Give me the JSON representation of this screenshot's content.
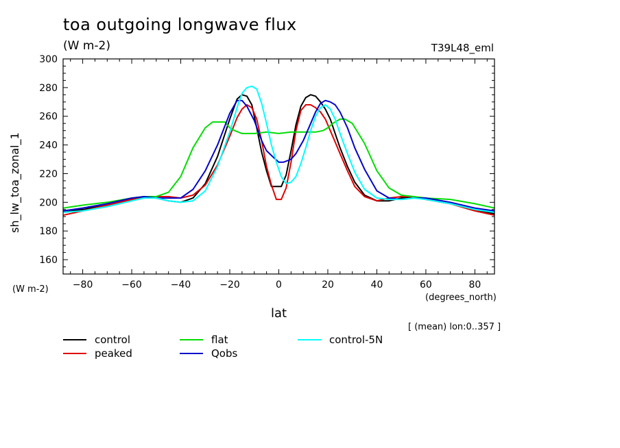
{
  "page": {
    "title": "toa outgoing longwave flux",
    "subtitle": "(W m-2)",
    "run_name": "T39L48_eml",
    "y_units": "(W m-2)",
    "x_units": "(degrees_north)",
    "averaging_note": "[ (mean) lon:0..357 ]"
  },
  "chart_data": {
    "type": "line",
    "title": "toa outgoing longwave flux",
    "xlabel": "lat",
    "ylabel": "sh_lw_toa_zonal_1",
    "xlim": [
      -88,
      88
    ],
    "ylim": [
      150,
      300
    ],
    "xticks": [
      -80,
      -60,
      -40,
      -20,
      0,
      20,
      40,
      60,
      80
    ],
    "yticks": [
      160,
      180,
      200,
      220,
      240,
      260,
      280,
      300
    ],
    "grid": false,
    "legend_position": "below",
    "series": [
      {
        "name": "control",
        "color": "#000000",
        "x": [
          -88,
          -80,
          -70,
          -60,
          -55,
          -50,
          -45,
          -40,
          -35,
          -30,
          -25,
          -20,
          -17,
          -15,
          -13,
          -11,
          -9,
          -7,
          -5,
          -3,
          -1,
          1,
          3,
          5,
          7,
          9,
          11,
          13,
          15,
          17,
          19,
          21,
          23,
          25,
          28,
          31,
          35,
          40,
          45,
          50,
          55,
          60,
          70,
          80,
          88
        ],
        "y": [
          193,
          195,
          198,
          202,
          204,
          203,
          201,
          200,
          203,
          213,
          232,
          258,
          272,
          275,
          274,
          268,
          252,
          235,
          222,
          211,
          211,
          211,
          219,
          236,
          254,
          267,
          273,
          275,
          274,
          270,
          265,
          258,
          248,
          238,
          225,
          214,
          205,
          201,
          201,
          203,
          204,
          202,
          199,
          195,
          192
        ]
      },
      {
        "name": "peaked",
        "color": "#e00000",
        "x": [
          -88,
          -80,
          -70,
          -60,
          -55,
          -50,
          -45,
          -40,
          -35,
          -30,
          -25,
          -20,
          -17,
          -15,
          -13,
          -11,
          -9,
          -7,
          -5,
          -3,
          -1,
          1,
          3,
          5,
          7,
          9,
          11,
          13,
          15,
          17,
          19,
          21,
          23,
          25,
          28,
          31,
          35,
          40,
          45,
          50,
          55,
          60,
          70,
          80,
          88
        ],
        "y": [
          191,
          194,
          198,
          202,
          204,
          204,
          204,
          203,
          205,
          212,
          226,
          246,
          259,
          265,
          268,
          266,
          258,
          243,
          225,
          212,
          202,
          202,
          210,
          228,
          250,
          264,
          268,
          268,
          266,
          263,
          258,
          250,
          242,
          234,
          222,
          211,
          204,
          201,
          203,
          204,
          204,
          202,
          199,
          194,
          191
        ]
      },
      {
        "name": "flat",
        "color": "#00dd00",
        "x": [
          -88,
          -80,
          -70,
          -60,
          -55,
          -50,
          -45,
          -40,
          -35,
          -30,
          -27,
          -25,
          -22,
          -20,
          -18,
          -15,
          -10,
          -5,
          0,
          5,
          10,
          15,
          18,
          20,
          22,
          25,
          27,
          30,
          35,
          40,
          45,
          50,
          55,
          60,
          70,
          80,
          88
        ],
        "y": [
          196,
          198,
          200,
          203,
          204,
          204,
          207,
          218,
          238,
          252,
          256,
          256,
          256,
          252,
          250,
          248,
          248,
          249,
          248,
          249,
          249,
          249,
          250,
          252,
          255,
          258,
          258,
          255,
          241,
          222,
          210,
          205,
          204,
          203,
          202,
          199,
          196
        ]
      },
      {
        "name": "Qobs",
        "color": "#0000cc",
        "x": [
          -88,
          -80,
          -70,
          -60,
          -55,
          -50,
          -45,
          -40,
          -35,
          -30,
          -25,
          -20,
          -17,
          -15,
          -13,
          -10,
          -7,
          -5,
          -2,
          0,
          2,
          5,
          7,
          10,
          13,
          15,
          17,
          19,
          21,
          23,
          25,
          28,
          31,
          35,
          40,
          45,
          50,
          55,
          60,
          70,
          80,
          88
        ],
        "y": [
          194,
          196,
          199,
          203,
          204,
          203,
          203,
          203,
          209,
          222,
          240,
          262,
          271,
          271,
          267,
          257,
          243,
          236,
          231,
          228,
          228,
          230,
          234,
          243,
          255,
          263,
          269,
          271,
          270,
          268,
          263,
          252,
          238,
          223,
          208,
          203,
          202,
          203,
          203,
          200,
          196,
          194
        ]
      },
      {
        "name": "control-5N",
        "color": "#00ffff",
        "x": [
          -88,
          -80,
          -70,
          -60,
          -55,
          -50,
          -45,
          -40,
          -35,
          -30,
          -25,
          -20,
          -17,
          -15,
          -13,
          -11,
          -9,
          -7,
          -5,
          -3,
          -1,
          1,
          3,
          5,
          7,
          9,
          11,
          13,
          15,
          17,
          19,
          21,
          23,
          25,
          28,
          31,
          35,
          40,
          45,
          50,
          55,
          60,
          70,
          80,
          88
        ],
        "y": [
          193,
          194,
          197,
          201,
          203,
          203,
          201,
          200,
          201,
          208,
          225,
          249,
          266,
          276,
          280,
          281,
          279,
          269,
          255,
          240,
          228,
          218,
          213,
          214,
          218,
          227,
          238,
          250,
          260,
          266,
          268,
          265,
          258,
          248,
          234,
          221,
          209,
          203,
          202,
          202,
          203,
          202,
          199,
          195,
          193
        ]
      }
    ]
  }
}
